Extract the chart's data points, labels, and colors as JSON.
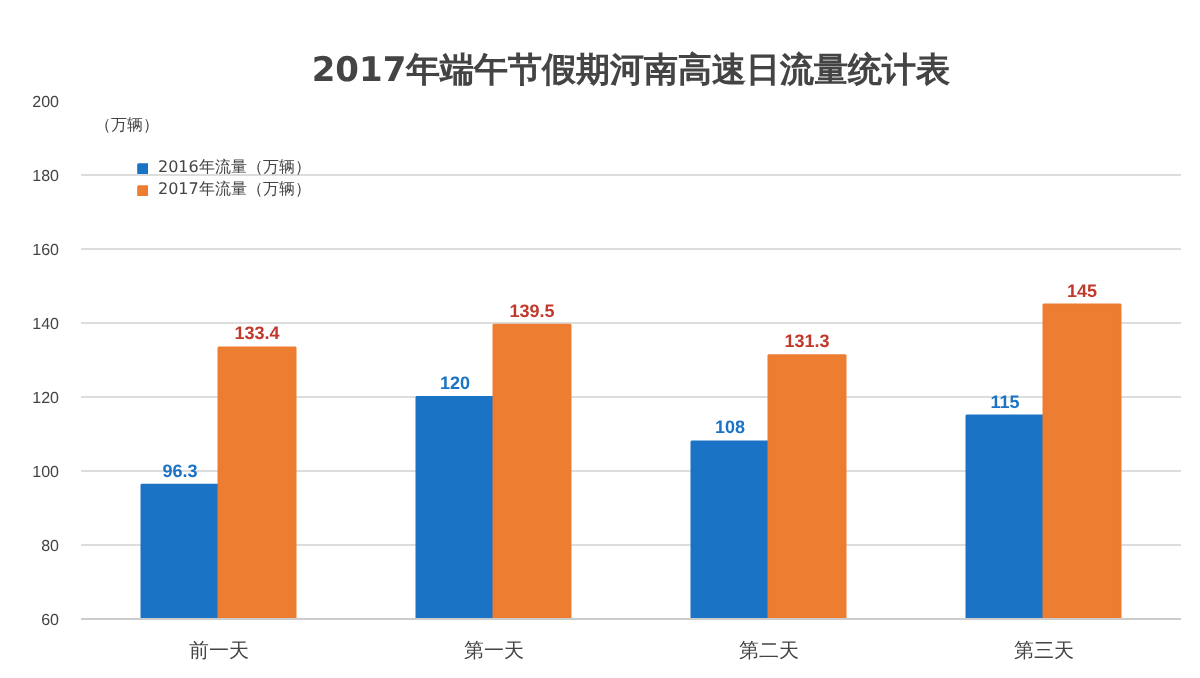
{
  "chart_data": {
    "type": "bar",
    "title": "2017年端午节假期河南高速日流量统计表",
    "ylabel": "（万辆）",
    "categories": [
      "前一天",
      "第一天",
      "第二天",
      "第三天"
    ],
    "series": [
      {
        "name": "2016年流量（万辆）",
        "color": "#1a73c4",
        "values": [
          96.3,
          120,
          108,
          115
        ]
      },
      {
        "name": "2017年流量（万辆）",
        "color": "#ed7d31",
        "values": [
          133.4,
          139.5,
          131.3,
          145
        ]
      }
    ],
    "ylim": [
      60,
      200
    ],
    "yticks": [
      60,
      80,
      100,
      120,
      140,
      160,
      180,
      200
    ],
    "grid": "y",
    "legend": "top left",
    "data_labels": true
  }
}
